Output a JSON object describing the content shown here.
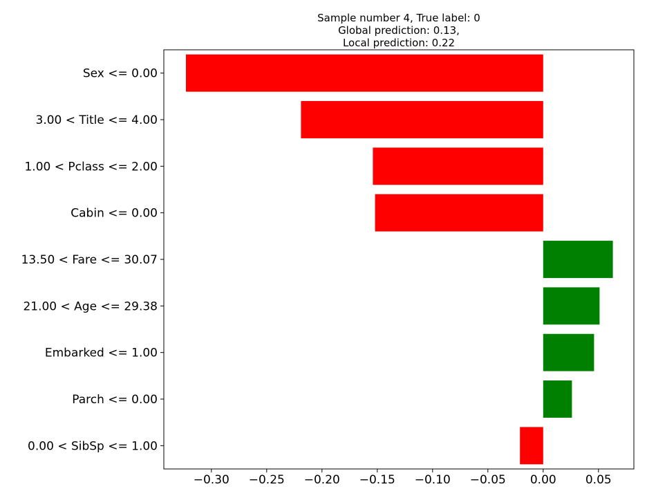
{
  "chart_data": {
    "type": "bar",
    "orientation": "horizontal",
    "title_lines": [
      "Sample number 4, True label: 0",
      "Global prediction: 0.13,",
      "Local prediction: 0.22"
    ],
    "categories": [
      "Sex <= 0.00",
      "3.00 < Title <= 4.00",
      "1.00 < Pclass <= 2.00",
      "Cabin <= 0.00",
      "13.50 < Fare <= 30.07",
      "21.00 < Age <= 29.38",
      "Embarked <= 1.00",
      "Parch <= 0.00",
      "0.00 < SibSp <= 1.00"
    ],
    "values": [
      -0.323,
      -0.219,
      -0.154,
      -0.152,
      0.063,
      0.051,
      0.046,
      0.026,
      -0.021
    ],
    "colors": {
      "negative": "#ff0000",
      "positive": "#008000"
    },
    "xlim": [
      -0.343,
      0.082
    ],
    "xticks": [
      -0.3,
      -0.25,
      -0.2,
      -0.15,
      -0.1,
      -0.05,
      0.0,
      0.05
    ],
    "xtick_labels": [
      "−0.30",
      "−0.25",
      "−0.20",
      "−0.15",
      "−0.10",
      "−0.05",
      "0.00",
      "0.05"
    ],
    "grid": false,
    "legend": "none"
  }
}
